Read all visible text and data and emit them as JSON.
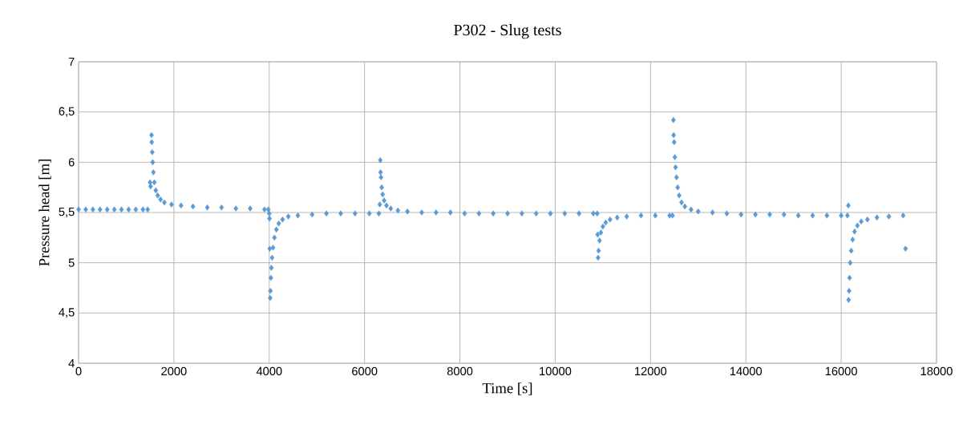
{
  "chart_data": {
    "type": "scatter",
    "title": "P302 - Slug tests",
    "xlabel": "Time [s]",
    "ylabel": "Pressure head [m]",
    "x": [
      0,
      150,
      300,
      450,
      600,
      750,
      900,
      1050,
      1200,
      1350,
      1450,
      1500,
      1510,
      1530,
      1535,
      1545,
      1555,
      1570,
      1590,
      1620,
      1660,
      1720,
      1800,
      1950,
      2150,
      2400,
      2700,
      3000,
      3300,
      3600,
      3900,
      3980,
      4000,
      4005,
      4010,
      4020,
      4025,
      4035,
      4045,
      4060,
      4080,
      4110,
      4150,
      4200,
      4280,
      4400,
      4600,
      4900,
      5200,
      5500,
      5800,
      6100,
      6300,
      6320,
      6330,
      6335,
      6345,
      6360,
      6380,
      6410,
      6460,
      6550,
      6700,
      6900,
      7200,
      7500,
      7800,
      8100,
      8400,
      8700,
      9000,
      9300,
      9600,
      9900,
      10200,
      10500,
      10800,
      10880,
      10890,
      10900,
      10910,
      10930,
      10960,
      11000,
      11060,
      11150,
      11300,
      11500,
      11800,
      12100,
      12400,
      12460,
      12480,
      12485,
      12495,
      12510,
      12525,
      12545,
      12570,
      12600,
      12650,
      12720,
      12850,
      13000,
      13300,
      13600,
      13900,
      14200,
      14500,
      14800,
      15100,
      15400,
      15700,
      16000,
      16130,
      16150,
      16155,
      16165,
      16175,
      16190,
      16210,
      16240,
      16280,
      16340,
      16420,
      16550,
      16750,
      17000,
      17300,
      17350
    ],
    "values": [
      5.53,
      5.53,
      5.53,
      5.53,
      5.53,
      5.53,
      5.53,
      5.53,
      5.53,
      5.53,
      5.53,
      5.8,
      5.76,
      6.27,
      6.2,
      6.1,
      6.0,
      5.9,
      5.8,
      5.72,
      5.67,
      5.63,
      5.6,
      5.58,
      5.57,
      5.56,
      5.55,
      5.55,
      5.54,
      5.54,
      5.53,
      5.53,
      5.49,
      5.44,
      5.14,
      4.65,
      4.72,
      4.85,
      4.95,
      5.05,
      5.15,
      5.25,
      5.33,
      5.39,
      5.43,
      5.46,
      5.47,
      5.48,
      5.49,
      5.49,
      5.49,
      5.49,
      5.49,
      5.58,
      6.02,
      5.9,
      5.85,
      5.75,
      5.68,
      5.62,
      5.57,
      5.54,
      5.52,
      5.51,
      5.5,
      5.5,
      5.5,
      5.49,
      5.49,
      5.49,
      5.49,
      5.49,
      5.49,
      5.49,
      5.49,
      5.49,
      5.49,
      5.49,
      5.28,
      5.05,
      5.12,
      5.22,
      5.3,
      5.36,
      5.4,
      5.43,
      5.45,
      5.46,
      5.47,
      5.47,
      5.47,
      5.47,
      6.42,
      6.27,
      6.2,
      6.05,
      5.95,
      5.85,
      5.75,
      5.67,
      5.6,
      5.56,
      5.53,
      5.51,
      5.5,
      5.49,
      5.48,
      5.48,
      5.48,
      5.48,
      5.47,
      5.47,
      5.47,
      5.47,
      5.47,
      5.57,
      4.63,
      4.72,
      4.85,
      5.0,
      5.12,
      5.23,
      5.31,
      5.37,
      5.41,
      5.43,
      5.45,
      5.46,
      5.47,
      5.14
    ],
    "color": "#5b9bd5",
    "marker": "diamond",
    "grid": true,
    "xlim": [
      0,
      18000
    ],
    "xticks": [
      0,
      2000,
      4000,
      6000,
      8000,
      10000,
      12000,
      14000,
      16000,
      18000
    ],
    "ylim": [
      4,
      7
    ],
    "yticks": [
      4,
      {
        "value": 4.5,
        "label": "4,5"
      },
      5,
      {
        "value": 5.5,
        "label": "5,5"
      },
      6,
      {
        "value": 6.5,
        "label": "6,5"
      },
      7
    ]
  }
}
